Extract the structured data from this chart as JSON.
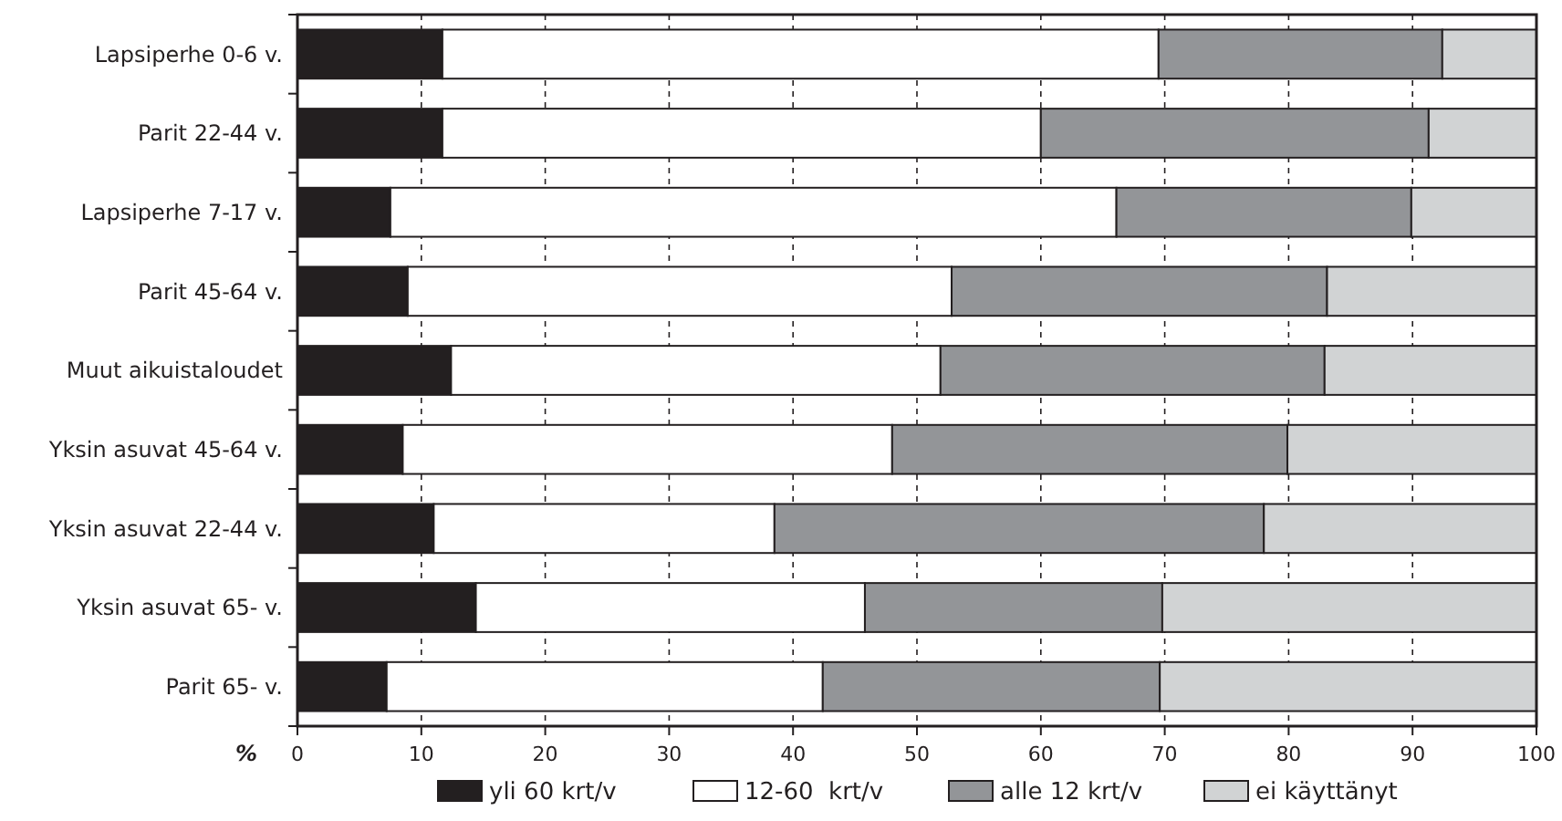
{
  "chart_data": {
    "type": "bar",
    "orientation": "horizontal",
    "stacked": true,
    "xlabel": "%",
    "categories": [
      "Lapsiperhe 0-6 v.",
      "Parit 22-44 v.",
      "Lapsiperhe 7-17 v.",
      "Parit 45-64 v.",
      "Muut aikuistaloudet",
      "Yksin asuvat 45-64 v.",
      "Yksin asuvat 22-44 v.",
      "Yksin asuvat 65- v.",
      "Parit 65- v."
    ],
    "series": [
      {
        "name": "yli 60 krt/v",
        "color": "#231f20",
        "values": [
          11.7,
          11.7,
          7.5,
          8.9,
          12.4,
          8.5,
          11.0,
          14.4,
          7.2
        ]
      },
      {
        "name": "12-60  krt/v",
        "color": "#ffffff",
        "values": [
          57.8,
          48.3,
          58.6,
          43.9,
          39.5,
          39.5,
          27.5,
          31.4,
          35.2
        ]
      },
      {
        "name": "alle 12 krt/v",
        "color": "#939598",
        "values": [
          22.9,
          31.3,
          23.8,
          30.3,
          31.0,
          31.9,
          39.5,
          24.0,
          27.2
        ]
      },
      {
        "name": "ei käyttänyt",
        "color": "#d1d3d4",
        "values": [
          7.6,
          8.7,
          10.1,
          16.9,
          17.1,
          20.1,
          22.0,
          30.2,
          30.4
        ]
      }
    ],
    "xlim": [
      0,
      100
    ],
    "xticks": [
      0,
      10,
      20,
      30,
      40,
      50,
      60,
      70,
      80,
      90,
      100
    ],
    "grid": "x",
    "legend": "bottom"
  }
}
